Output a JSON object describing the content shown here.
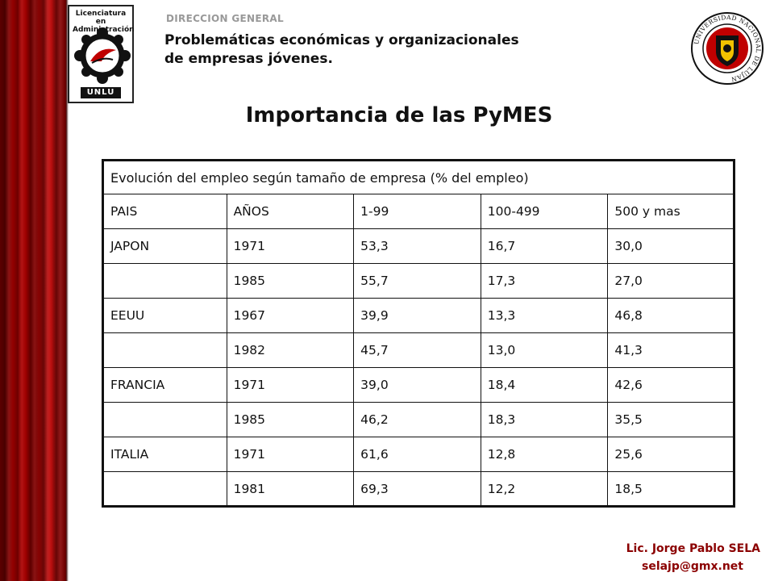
{
  "header": {
    "department": "DIRECCION GENERAL",
    "subtitle_line1": "Problemáticas económicas y organizacionales",
    "subtitle_line2": "de empresas jóvenes.",
    "logo_left_text_line1": "Licenciatura en",
    "logo_left_text_line2": "Administración",
    "logo_left_badge": "UNLU",
    "seal_text": "UNIVERSIDAD NACIONAL DE LUJAN"
  },
  "title": "Importancia de las PyMES",
  "table": {
    "caption": "Evolución del empleo según tamaño de empresa (% del empleo)",
    "headers": [
      "PAIS",
      "AÑOS",
      "1-99",
      "100-499",
      "500 y mas"
    ],
    "rows": [
      [
        "JAPON",
        "1971",
        "53,3",
        "16,7",
        "30,0"
      ],
      [
        "",
        "1985",
        "55,7",
        "17,3",
        "27,0"
      ],
      [
        "EEUU",
        "1967",
        "39,9",
        "13,3",
        "46,8"
      ],
      [
        "",
        "1982",
        "45,7",
        "13,0",
        "41,3"
      ],
      [
        "FRANCIA",
        "1971",
        "39,0",
        "18,4",
        "42,6"
      ],
      [
        "",
        "1985",
        "46,2",
        "18,3",
        "35,5"
      ],
      [
        "ITALIA",
        "1971",
        "61,6",
        "12,8",
        "25,6"
      ],
      [
        "",
        "1981",
        "69,3",
        "12,2",
        "18,5"
      ]
    ]
  },
  "footer": {
    "author": "Lic. Jorge Pablo SELA",
    "email": "selajp@gmx.net"
  },
  "colors": {
    "curtain": "#b10000",
    "footer_text": "#8b0000",
    "department_text": "#999999"
  }
}
